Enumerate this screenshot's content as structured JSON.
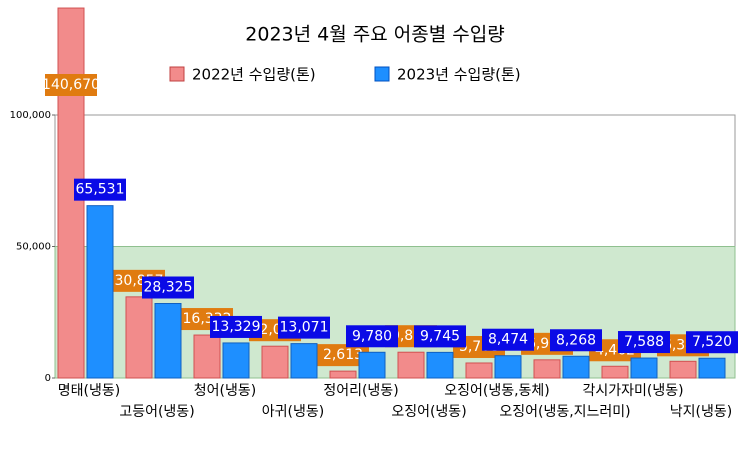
{
  "chart_data": {
    "type": "bar",
    "title": "2023년 4월 주요 어종별 수입량",
    "categories": [
      "명태(냉동)",
      "고등어(냉동)",
      "청어(냉동)",
      "아귀(냉동)",
      "정어리(냉동)",
      "오징어(냉동)",
      "오징어(냉동,동체)",
      "오징어(냉동,지느러미)",
      "각시가자미(냉동)",
      "낙지(냉동)"
    ],
    "series": [
      {
        "name": "2022년 수입량(톤)",
        "color": "#f28b8b",
        "label_color": "#e07b10",
        "values": [
          140670,
          30857,
          16332,
          12092,
          2613,
          9807,
          5708,
          6908,
          4462,
          6348
        ],
        "value_labels": [
          "140,670",
          "30,857",
          "16,332",
          "12,092",
          "2,613",
          "9,807",
          "5,708",
          "6,908",
          "4,462",
          "6,348"
        ]
      },
      {
        "name": "2023년 수입량(톤)",
        "color": "#1e8fff",
        "label_color": "#0a0ae6",
        "values": [
          65531,
          28325,
          13329,
          13071,
          9780,
          9745,
          8474,
          8268,
          7588,
          7520
        ],
        "value_labels": [
          "65,531",
          "28,325",
          "13,329",
          "13,071",
          "9,780",
          "9,745",
          "8,474",
          "8,268",
          "7,588",
          "7,520"
        ]
      }
    ],
    "ylim": [
      0,
      100000
    ],
    "yticks": [
      0,
      {
        "value": 50000,
        "label": "50,000"
      },
      {
        "value": 100000,
        "label": "100,000"
      }
    ]
  }
}
